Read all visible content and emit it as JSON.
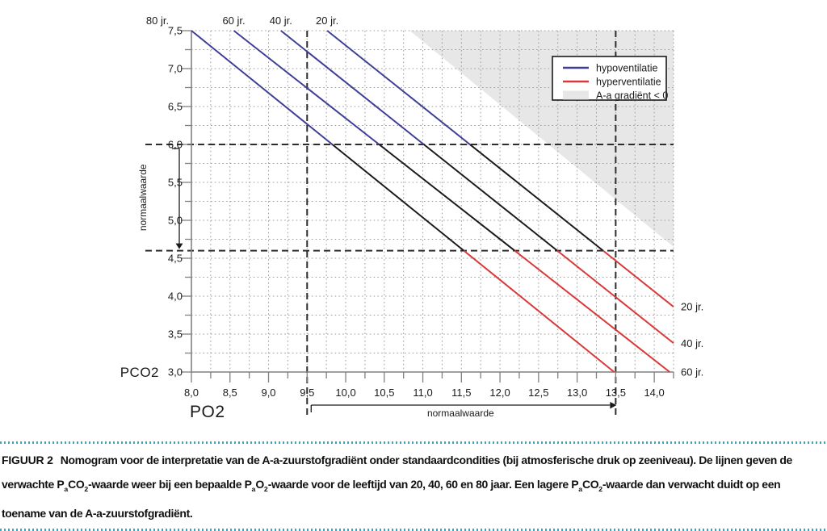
{
  "figure": {
    "rule_color": "#35a8c4",
    "caption": {
      "segments": [
        {
          "text": "FIGUUR 2",
          "style": "label"
        },
        {
          "text": "Nomogram voor de interpretatie van de A-a-zuurstofgradiënt onder standaardcondities (bij atmosferische druk op zeeniveau). De lijnen geven de verwachte P"
        },
        {
          "text": "a",
          "style": "sub"
        },
        {
          "text": "CO"
        },
        {
          "text": "2",
          "style": "sub"
        },
        {
          "text": "-waarde weer bij een bepaalde P"
        },
        {
          "text": "a",
          "style": "sub"
        },
        {
          "text": "O"
        },
        {
          "text": "2",
          "style": "sub"
        },
        {
          "text": "-waarde voor de leeftijd van 20, 40, 60 en 80 jaar. Een lagere P"
        },
        {
          "text": "a",
          "style": "sub"
        },
        {
          "text": "CO"
        },
        {
          "text": "2",
          "style": "sub"
        },
        {
          "text": "-waarde dan verwacht duidt op een toename van de A-a-zuurstofgradiënt."
        }
      ]
    }
  },
  "chart_data": {
    "type": "line",
    "xlabel": "PO2",
    "ylabel": "PCO2",
    "xlim": [
      8.0,
      14.25
    ],
    "ylim": [
      3.0,
      7.5
    ],
    "minor_grid_step": 0.25,
    "decimal_separator": ",",
    "x_ticks": [
      8.0,
      8.5,
      9.0,
      9.5,
      10.0,
      10.5,
      11.0,
      11.5,
      12.0,
      12.5,
      13.0,
      13.5,
      14.0
    ],
    "y_ticks": [
      3.0,
      3.5,
      4.0,
      4.5,
      5.0,
      5.5,
      6.0,
      6.5,
      7.0,
      7.5
    ],
    "series": [
      {
        "name": "80 jr.",
        "age": 80,
        "points": [
          [
            8.0,
            7.5
          ],
          [
            13.48,
            3.0
          ]
        ],
        "right_label": false
      },
      {
        "name": "60 jr.",
        "age": 60,
        "points": [
          [
            8.55,
            7.5
          ],
          [
            14.2,
            3.0
          ]
        ],
        "right_label": true
      },
      {
        "name": "40 jr.",
        "age": 40,
        "points": [
          [
            9.16,
            7.5
          ],
          [
            14.25,
            3.38
          ]
        ],
        "right_label": true
      },
      {
        "name": "20 jr.",
        "age": 20,
        "points": [
          [
            9.76,
            7.5
          ],
          [
            14.25,
            3.86
          ]
        ],
        "right_label": true
      }
    ],
    "bands": {
      "hypoventilatie_above_pco2": 6.0,
      "hyperventilatie_below_pco2": 4.6
    },
    "normal_range": {
      "pco2": [
        4.6,
        6.0
      ],
      "po2": [
        9.5,
        13.5
      ],
      "label_y": "normaalwaarde",
      "label_x": "normaalwaarde"
    },
    "shaded_region": {
      "label": "A-a gradiënt < 0",
      "boundary_po2_pco2": [
        [
          10.83,
          7.5
        ],
        [
          14.25,
          4.65
        ]
      ]
    },
    "legend": {
      "items": [
        {
          "label": "hypoventilatie",
          "type": "line",
          "color": "#3e3e96"
        },
        {
          "label": "hyperventilatie",
          "type": "line",
          "color": "#d83838"
        },
        {
          "label": "A-a gradiënt < 0",
          "type": "box",
          "color": "#e7e7e7"
        }
      ]
    },
    "colors": {
      "hypoventilatie": "#3e3e96",
      "hyperventilatie": "#d83838",
      "normal_segment": "#1b1b1b",
      "shaded": "#e7e7e7",
      "axis": "#808080",
      "grid": "#9c9c9c",
      "dashed": "#2d2d2d",
      "text": "#1a1a1a",
      "legend_border": "#1a1a1a"
    }
  }
}
